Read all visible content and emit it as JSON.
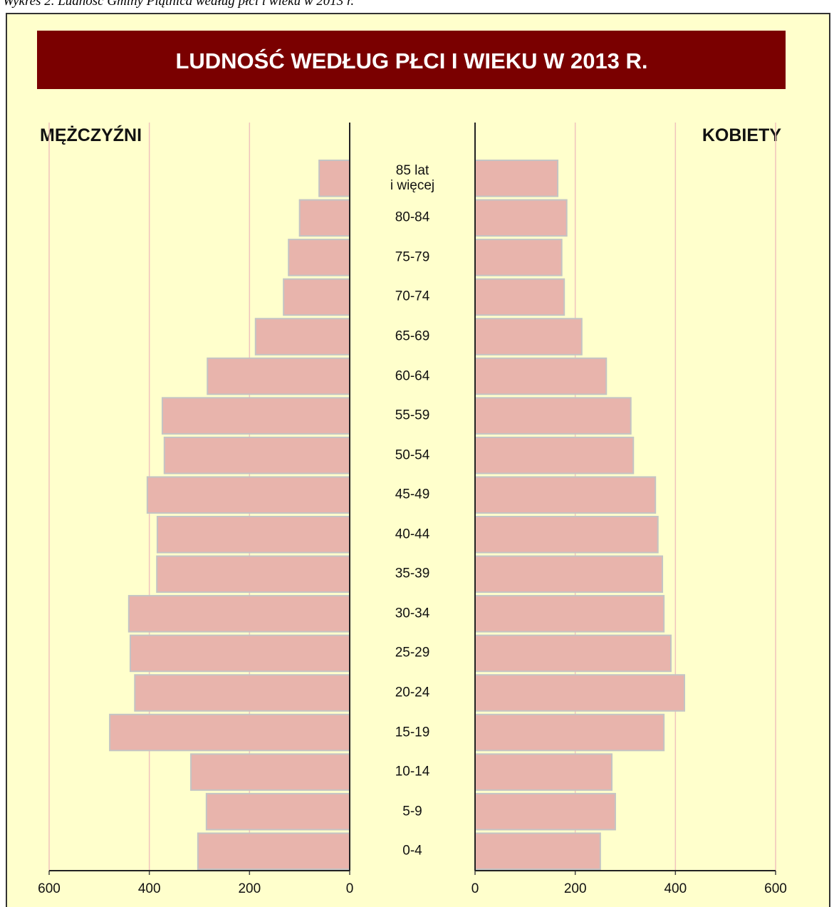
{
  "caption": "Wykres 2. Ludność Gminy Piątnica według płci i wieku w 2013 r.",
  "chart_data": {
    "type": "pyramid",
    "title": "LUDNOŚĆ WEDŁUG PŁCI I WIEKU W 2013 R.",
    "categories": [
      "85 lat\ni więcej",
      "80-84",
      "75-79",
      "70-74",
      "65-69",
      "60-64",
      "55-59",
      "50-54",
      "45-49",
      "40-44",
      "35-39",
      "30-34",
      "25-29",
      "20-24",
      "15-19",
      "10-14",
      "5-9",
      "0-4"
    ],
    "series": [
      {
        "name": "MĘŻCZYŹNI",
        "color": "#e8b4ac",
        "values": [
          61,
          100,
          122,
          132,
          188,
          284,
          374,
          370,
          404,
          384,
          385,
          441,
          438,
          429,
          479,
          317,
          286,
          303
        ]
      },
      {
        "name": "KOBIETY",
        "color": "#e8b4ac",
        "values": [
          165,
          183,
          173,
          178,
          213,
          262,
          311,
          316,
          360,
          365,
          374,
          377,
          391,
          418,
          377,
          273,
          280,
          250
        ]
      }
    ],
    "xlim": [
      0,
      600
    ],
    "xticks": [
      0,
      200,
      400,
      600
    ],
    "grid": true
  }
}
